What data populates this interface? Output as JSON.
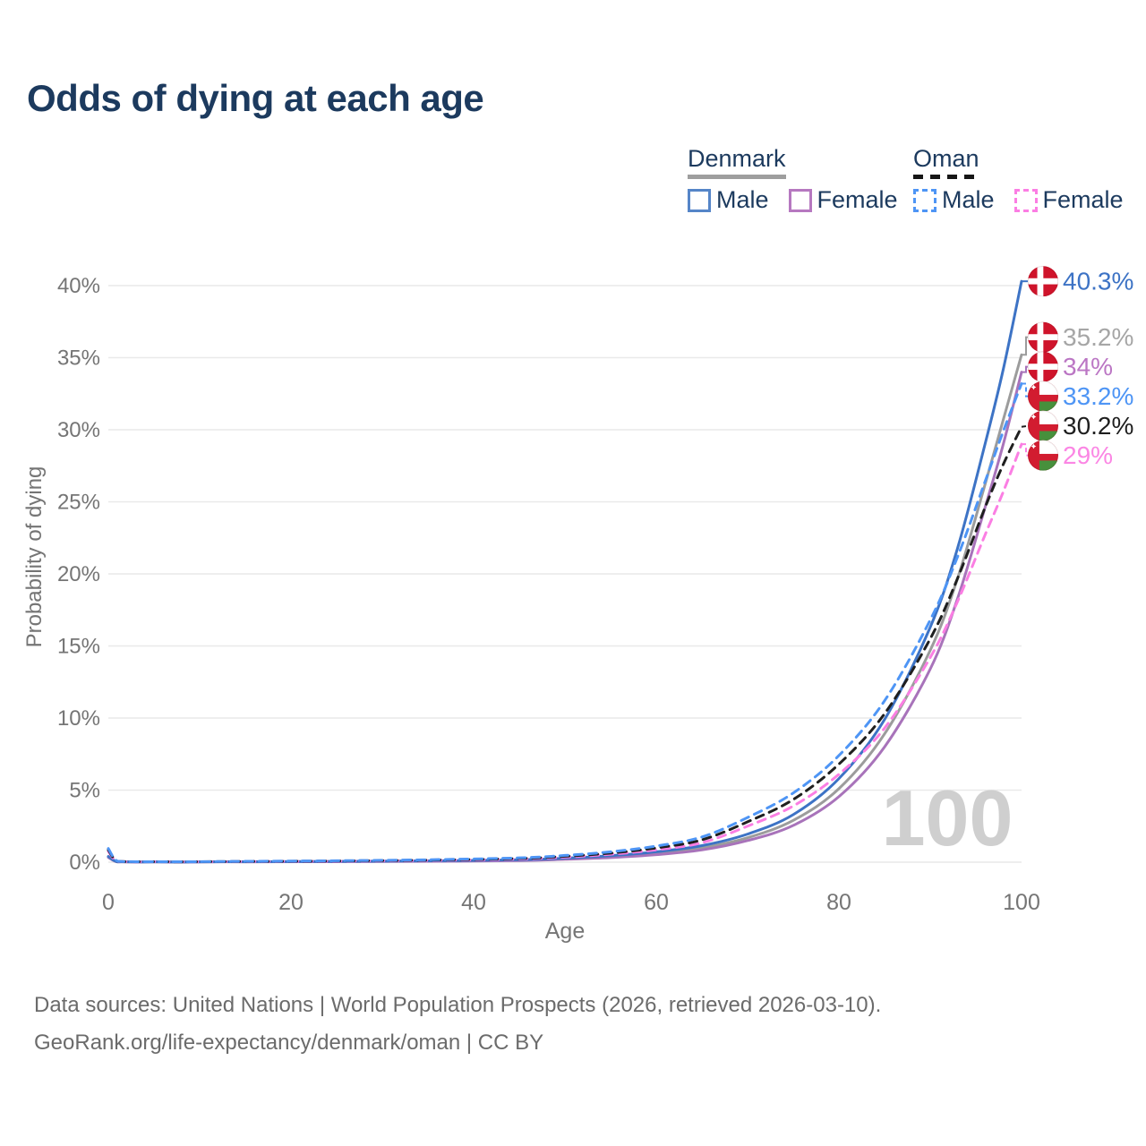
{
  "title": "Odds of dying at each age",
  "legend": {
    "groups": [
      {
        "label": "Denmark",
        "line_style": "solid",
        "underline_color": "#9e9e9e",
        "items": [
          {
            "label": "Male",
            "color": "#5585c8",
            "dashed": false
          },
          {
            "label": "Female",
            "color": "#b678c0",
            "dashed": false
          }
        ]
      },
      {
        "label": "Oman",
        "line_style": "dashed",
        "underline_color": "#161616",
        "items": [
          {
            "label": "Male",
            "color": "#4e95f5",
            "dashed": true
          },
          {
            "label": "Female",
            "color": "#fb7ee3",
            "dashed": true
          }
        ]
      }
    ]
  },
  "chart_data": {
    "type": "line",
    "title": "Odds of dying at each age",
    "xlabel": "Age",
    "ylabel": "Probability of dying",
    "xlim": [
      0,
      100
    ],
    "ylim_percent": [
      0,
      42
    ],
    "grid": "horizontal-only",
    "watermark": "100",
    "x_ticks": [
      {
        "v": 0,
        "label": "0"
      },
      {
        "v": 20,
        "label": "20"
      },
      {
        "v": 40,
        "label": "40"
      },
      {
        "v": 60,
        "label": "60"
      },
      {
        "v": 80,
        "label": "80"
      },
      {
        "v": 100,
        "label": "100"
      }
    ],
    "y_ticks": [
      {
        "v": 0,
        "label": "0%"
      },
      {
        "v": 5,
        "label": "5%"
      },
      {
        "v": 10,
        "label": "10%"
      },
      {
        "v": 15,
        "label": "15%"
      },
      {
        "v": 20,
        "label": "20%"
      },
      {
        "v": 25,
        "label": "25%"
      },
      {
        "v": 30,
        "label": "30%"
      },
      {
        "v": 35,
        "label": "35%"
      },
      {
        "v": 40,
        "label": "40%"
      }
    ],
    "series": [
      {
        "name": "Denmark both sexes",
        "country": "Denmark",
        "flag": "denmark",
        "color": "#9c9c9c",
        "label_color": "#a6a6a6",
        "dashed": false,
        "end_value": 35.2,
        "end_label": "35.2%",
        "points": [
          [
            0,
            0.37
          ],
          [
            1,
            0.022
          ],
          [
            3,
            0.011
          ],
          [
            8,
            0.009
          ],
          [
            15,
            0.025
          ],
          [
            25,
            0.045
          ],
          [
            35,
            0.075
          ],
          [
            45,
            0.14
          ],
          [
            50,
            0.24
          ],
          [
            55,
            0.38
          ],
          [
            60,
            0.62
          ],
          [
            65,
            1.0
          ],
          [
            70,
            1.7
          ],
          [
            75,
            2.9
          ],
          [
            80,
            5.1
          ],
          [
            85,
            8.9
          ],
          [
            90,
            14.7
          ],
          [
            93,
            19.7
          ],
          [
            96,
            26.2
          ],
          [
            98,
            30.7
          ],
          [
            100,
            35.2
          ]
        ]
      },
      {
        "name": "Denmark female",
        "country": "Denmark",
        "flag": "denmark",
        "color": "#a873ba",
        "label_color": "#bb76c4",
        "dashed": false,
        "end_value": 34,
        "end_label": "34%",
        "points": [
          [
            0,
            0.33
          ],
          [
            1,
            0.02
          ],
          [
            3,
            0.01
          ],
          [
            8,
            0.008
          ],
          [
            15,
            0.02
          ],
          [
            25,
            0.035
          ],
          [
            35,
            0.06
          ],
          [
            45,
            0.11
          ],
          [
            50,
            0.2
          ],
          [
            55,
            0.32
          ],
          [
            60,
            0.52
          ],
          [
            65,
            0.85
          ],
          [
            70,
            1.5
          ],
          [
            75,
            2.55
          ],
          [
            80,
            4.55
          ],
          [
            85,
            8.0
          ],
          [
            90,
            13.4
          ],
          [
            93,
            18.3
          ],
          [
            96,
            24.6
          ],
          [
            98,
            29.0
          ],
          [
            100,
            34.0
          ]
        ]
      },
      {
        "name": "Denmark male",
        "country": "Denmark",
        "flag": "denmark",
        "color": "#3d73c5",
        "label_color": "#3d73c5",
        "dashed": false,
        "end_value": 40.3,
        "end_label": "40.3%",
        "points": [
          [
            0,
            0.4
          ],
          [
            1,
            0.025
          ],
          [
            3,
            0.012
          ],
          [
            8,
            0.01
          ],
          [
            15,
            0.03
          ],
          [
            25,
            0.055
          ],
          [
            35,
            0.09
          ],
          [
            45,
            0.17
          ],
          [
            50,
            0.28
          ],
          [
            55,
            0.45
          ],
          [
            60,
            0.72
          ],
          [
            65,
            1.15
          ],
          [
            70,
            1.95
          ],
          [
            75,
            3.3
          ],
          [
            80,
            5.8
          ],
          [
            85,
            9.9
          ],
          [
            90,
            16.3
          ],
          [
            93,
            21.8
          ],
          [
            96,
            29.0
          ],
          [
            98,
            34.2
          ],
          [
            100,
            40.3
          ]
        ]
      },
      {
        "name": "Oman female",
        "country": "Oman",
        "flag": "oman",
        "color": "#fb7ee3",
        "label_color": "#fb86e4",
        "dashed": true,
        "end_value": 29,
        "end_label": "29%",
        "points": [
          [
            0,
            0.75
          ],
          [
            1,
            0.05
          ],
          [
            3,
            0.025
          ],
          [
            8,
            0.02
          ],
          [
            15,
            0.04
          ],
          [
            25,
            0.07
          ],
          [
            35,
            0.12
          ],
          [
            45,
            0.22
          ],
          [
            50,
            0.35
          ],
          [
            55,
            0.55
          ],
          [
            60,
            0.86
          ],
          [
            65,
            1.35
          ],
          [
            70,
            2.5
          ],
          [
            75,
            3.9
          ],
          [
            80,
            6.1
          ],
          [
            85,
            9.3
          ],
          [
            90,
            14.2
          ],
          [
            93,
            18.1
          ],
          [
            96,
            22.7
          ],
          [
            98,
            25.7
          ],
          [
            100,
            29.0
          ]
        ]
      },
      {
        "name": "Oman both sexes",
        "country": "Oman",
        "flag": "oman",
        "color": "#1f1f1f",
        "label_color": "#1f1f1f",
        "dashed": true,
        "end_value": 30.2,
        "end_label": "30.2%",
        "points": [
          [
            0,
            0.85
          ],
          [
            1,
            0.06
          ],
          [
            3,
            0.03
          ],
          [
            8,
            0.025
          ],
          [
            15,
            0.05
          ],
          [
            25,
            0.085
          ],
          [
            35,
            0.145
          ],
          [
            45,
            0.26
          ],
          [
            50,
            0.41
          ],
          [
            55,
            0.63
          ],
          [
            60,
            0.99
          ],
          [
            65,
            1.55
          ],
          [
            70,
            2.8
          ],
          [
            75,
            4.35
          ],
          [
            80,
            6.8
          ],
          [
            85,
            10.3
          ],
          [
            90,
            15.5
          ],
          [
            93,
            19.7
          ],
          [
            96,
            24.6
          ],
          [
            98,
            27.6
          ],
          [
            100,
            30.2
          ]
        ]
      },
      {
        "name": "Oman male",
        "country": "Oman",
        "flag": "oman",
        "color": "#4e95f5",
        "label_color": "#4e95f5",
        "dashed": true,
        "end_value": 33.2,
        "end_label": "33.2%",
        "points": [
          [
            0,
            0.95
          ],
          [
            1,
            0.07
          ],
          [
            3,
            0.035
          ],
          [
            8,
            0.03
          ],
          [
            15,
            0.06
          ],
          [
            25,
            0.1
          ],
          [
            35,
            0.17
          ],
          [
            45,
            0.3
          ],
          [
            50,
            0.47
          ],
          [
            55,
            0.72
          ],
          [
            60,
            1.12
          ],
          [
            65,
            1.75
          ],
          [
            70,
            3.1
          ],
          [
            75,
            4.8
          ],
          [
            80,
            7.4
          ],
          [
            85,
            11.2
          ],
          [
            90,
            16.8
          ],
          [
            93,
            21.2
          ],
          [
            96,
            26.4
          ],
          [
            98,
            29.9
          ],
          [
            100,
            33.2
          ]
        ]
      }
    ],
    "flag_colors": {
      "denmark_red": "#cf142b",
      "oman_red": "#d21c30",
      "oman_green": "#47903c",
      "white": "#ffffff"
    }
  },
  "footer": {
    "line1": "Data sources: United Nations | World Population Prospects (2026, retrieved 2026-03-10).",
    "line2": "GeoRank.org/life-expectancy/denmark/oman | CC BY"
  }
}
